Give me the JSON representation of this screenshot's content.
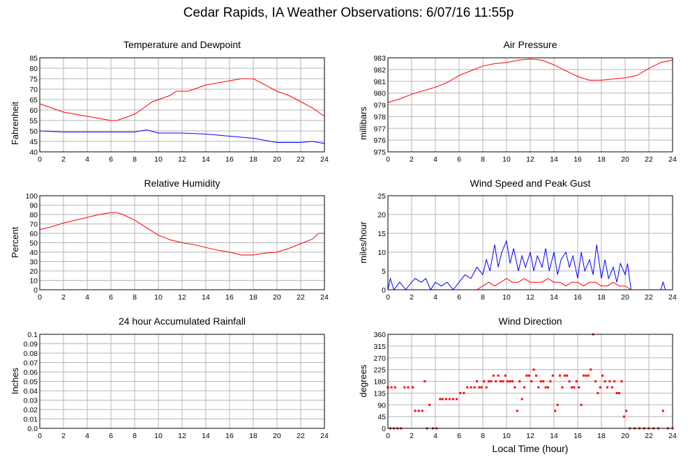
{
  "page": {
    "title": "Cedar Rapids, IA Weather Observations: 6/07/16 11:55p"
  },
  "colors": {
    "red": "#ff0000",
    "blue": "#0000ff",
    "grid": "#b5b5b5"
  },
  "chart_data": [
    {
      "id": "temp",
      "type": "line",
      "title": "Temperature and Dewpoint",
      "ylabel": "Fahrenheit",
      "xlabel": "",
      "xlim": [
        0,
        24
      ],
      "ylim": [
        40,
        85
      ],
      "xticks": [
        0,
        2,
        4,
        6,
        8,
        10,
        12,
        14,
        16,
        18,
        20,
        22,
        24
      ],
      "yticks": [
        40,
        45,
        50,
        55,
        60,
        65,
        70,
        75,
        80,
        85
      ],
      "grid": true,
      "series": [
        {
          "color": "#ff0000",
          "x": [
            0,
            1,
            2,
            3,
            4,
            5,
            6,
            6.5,
            7,
            8,
            8.5,
            9,
            9.5,
            10,
            11,
            11.5,
            12,
            12.5,
            13,
            14,
            15,
            16,
            17,
            18,
            19,
            20,
            21,
            22,
            23,
            24
          ],
          "y": [
            63,
            61,
            59,
            58,
            57,
            56,
            55,
            55,
            56,
            58,
            60,
            62,
            64,
            65,
            67,
            69,
            69,
            69,
            70,
            72,
            73,
            74,
            75,
            75,
            72,
            69,
            67,
            64,
            61,
            57
          ]
        },
        {
          "color": "#0000ff",
          "x": [
            0,
            2,
            4,
            6,
            8,
            9,
            10,
            12,
            14,
            16,
            18,
            19,
            20,
            22,
            23,
            24
          ],
          "y": [
            50,
            49.5,
            49.5,
            49.5,
            49.5,
            50.5,
            49,
            49,
            48.5,
            47.5,
            46.5,
            45.5,
            44.5,
            44.5,
            45,
            44
          ]
        }
      ]
    },
    {
      "id": "pressure",
      "type": "line",
      "title": "Air Pressure",
      "ylabel": "millibars",
      "xlabel": "",
      "xlim": [
        0,
        24
      ],
      "ylim": [
        975,
        983
      ],
      "xticks": [
        0,
        2,
        4,
        6,
        8,
        10,
        12,
        14,
        16,
        18,
        20,
        22,
        24
      ],
      "yticks": [
        975,
        976,
        977,
        978,
        979,
        980,
        981,
        982,
        983
      ],
      "grid": true,
      "series": [
        {
          "color": "#ff0000",
          "x": [
            0,
            1,
            2,
            3,
            4,
            5,
            6,
            7,
            8,
            9,
            10,
            11,
            12,
            13,
            14,
            15,
            16,
            17,
            18,
            19,
            20,
            21,
            22,
            23,
            24
          ],
          "y": [
            979.2,
            979.5,
            979.9,
            980.2,
            980.5,
            980.9,
            981.5,
            981.9,
            982.3,
            982.5,
            982.6,
            982.8,
            982.9,
            982.8,
            982.4,
            981.9,
            981.4,
            981.1,
            981.1,
            981.2,
            981.3,
            981.5,
            982.1,
            982.6,
            982.8
          ]
        }
      ]
    },
    {
      "id": "humidity",
      "type": "line",
      "title": "Relative Humidity",
      "ylabel": "Percent",
      "xlabel": "",
      "xlim": [
        0,
        24
      ],
      "ylim": [
        0,
        100
      ],
      "xticks": [
        0,
        2,
        4,
        6,
        8,
        10,
        12,
        14,
        16,
        18,
        20,
        22,
        24
      ],
      "yticks": [
        0,
        10,
        20,
        30,
        40,
        50,
        60,
        70,
        80,
        90,
        100
      ],
      "grid": true,
      "series": [
        {
          "color": "#ff0000",
          "x": [
            0,
            1,
            2,
            3,
            4,
            5,
            6,
            6.5,
            7,
            8,
            9,
            10,
            11,
            12,
            13,
            14,
            15,
            16,
            17,
            18,
            19,
            20,
            21,
            22,
            23,
            23.5,
            24
          ],
          "y": [
            64,
            67,
            71,
            74,
            77,
            80,
            82,
            82,
            80,
            74,
            66,
            58,
            53,
            50,
            48,
            45,
            42,
            40,
            37,
            37,
            39,
            40,
            44,
            49,
            54,
            60,
            60
          ]
        }
      ]
    },
    {
      "id": "wind",
      "type": "line",
      "title": "Wind Speed and Peak Gust",
      "ylabel": "miles/hour",
      "xlabel": "",
      "xlim": [
        0,
        24
      ],
      "ylim": [
        0,
        25
      ],
      "xticks": [
        0,
        2,
        4,
        6,
        8,
        10,
        12,
        14,
        16,
        18,
        20,
        22,
        24
      ],
      "yticks": [
        0,
        5,
        10,
        15,
        20,
        25
      ],
      "grid": true,
      "series": [
        {
          "color": "#0000ff",
          "x": [
            0,
            0.2,
            0.5,
            1,
            1.5,
            2,
            2.3,
            2.8,
            3.2,
            3.6,
            4,
            4.5,
            5,
            5.5,
            6,
            6.5,
            7,
            7.5,
            8,
            8.3,
            8.6,
            9,
            9.3,
            9.6,
            10,
            10.3,
            10.6,
            11,
            11.3,
            11.6,
            12,
            12.3,
            12.6,
            13,
            13.3,
            13.6,
            14,
            14.3,
            14.6,
            15,
            15.3,
            15.6,
            16,
            16.3,
            16.6,
            17,
            17.3,
            17.6,
            18,
            18.3,
            18.6,
            19,
            19.3,
            19.6,
            20,
            20.2,
            20.5,
            21,
            23,
            23.2,
            23.4,
            24
          ],
          "y": [
            0,
            3,
            0,
            2,
            0,
            2,
            3,
            2,
            3,
            0,
            2,
            1,
            2,
            0,
            2,
            4,
            3,
            6,
            4,
            8,
            5,
            12,
            6,
            10,
            13,
            7,
            11,
            5,
            9,
            6,
            10,
            5,
            9,
            6,
            11,
            5,
            10,
            4,
            8,
            10,
            6,
            9,
            3,
            10,
            5,
            8,
            4,
            12,
            3,
            8,
            3,
            6,
            2,
            7,
            4,
            7,
            0,
            0,
            0,
            2,
            0,
            0
          ]
        },
        {
          "color": "#ff0000",
          "x": [
            0,
            7.5,
            8,
            8.5,
            9,
            9.5,
            10,
            10.5,
            11,
            11.5,
            12,
            12.5,
            13,
            13.5,
            14,
            14.5,
            15,
            15.5,
            16,
            16.5,
            17,
            17.5,
            18,
            18.5,
            19,
            19.5,
            20,
            20.5,
            24
          ],
          "y": [
            0,
            0,
            1,
            2,
            1,
            2,
            3,
            2,
            2,
            3,
            2,
            2,
            2,
            3,
            2,
            2,
            1,
            2,
            2,
            1,
            2,
            2,
            1,
            1,
            2,
            1,
            1,
            0,
            0
          ]
        }
      ]
    },
    {
      "id": "rain",
      "type": "line",
      "title": "24 hour Accumulated Rainfall",
      "ylabel": "Inches",
      "xlabel": "",
      "xlim": [
        0,
        24
      ],
      "ylim": [
        0,
        0.1
      ],
      "xticks": [
        0,
        2,
        4,
        6,
        8,
        10,
        12,
        14,
        16,
        18,
        20,
        22,
        24
      ],
      "yticks": [
        0.0,
        0.01,
        0.02,
        0.03,
        0.04,
        0.05,
        0.06,
        0.07,
        0.08,
        0.09,
        0.1
      ],
      "ytick_labels": [
        "0.0",
        "0.01",
        "0.02",
        "0.03",
        "0.04",
        "0.05",
        "0.06",
        "0.07",
        "0.08",
        "0.09",
        "0.1"
      ],
      "grid": true,
      "series": [
        {
          "color": "#ff0000",
          "x": [
            0,
            24
          ],
          "y": [
            0,
            0
          ]
        }
      ]
    },
    {
      "id": "direction",
      "type": "scatter",
      "title": "Wind Direction",
      "ylabel": "degrees",
      "xlabel": "Local Time (hour)",
      "xlim": [
        0,
        24
      ],
      "ylim": [
        0,
        360
      ],
      "xticks": [
        0,
        2,
        4,
        6,
        8,
        10,
        12,
        14,
        16,
        18,
        20,
        22,
        24
      ],
      "yticks": [
        0,
        45,
        90,
        135,
        180,
        225,
        270,
        315,
        360
      ],
      "grid": true,
      "series": [
        {
          "color": "#ff0000",
          "x": [
            0,
            0.3,
            0.6,
            0.2,
            0.5,
            0.8,
            1.1,
            1.4,
            1.7,
            2.1,
            2.3,
            2.6,
            2.9,
            3.1,
            3.3,
            3.5,
            3.8,
            4.1,
            4.4,
            4.6,
            4.9,
            5.2,
            5.5,
            5.8,
            6.1,
            6.4,
            6.7,
            7.0,
            7.3,
            7.5,
            7.7,
            7.9,
            8.1,
            8.3,
            8.5,
            8.7,
            8.9,
            9.1,
            9.3,
            9.5,
            9.7,
            9.9,
            10.1,
            10.3,
            10.5,
            10.7,
            10.9,
            11.1,
            11.3,
            11.5,
            11.7,
            11.9,
            12.1,
            12.3,
            12.5,
            12.7,
            12.9,
            13.1,
            13.3,
            13.5,
            13.7,
            13.9,
            14.1,
            14.3,
            14.5,
            14.7,
            14.9,
            15.1,
            15.3,
            15.5,
            15.7,
            15.9,
            16.1,
            16.3,
            16.5,
            16.7,
            16.9,
            17.1,
            17.3,
            17.5,
            17.7,
            17.9,
            18.1,
            18.3,
            18.5,
            18.7,
            18.9,
            19.1,
            19.3,
            19.5,
            19.7,
            19.9,
            20.1,
            20.4,
            20.8,
            21.2,
            21.6,
            22.0,
            22.4,
            22.8,
            23.2,
            23.6,
            24
          ],
          "y": [
            157,
            157,
            157,
            0,
            0,
            0,
            0,
            157,
            157,
            157,
            67,
            67,
            67,
            180,
            0,
            90,
            0,
            0,
            112,
            112,
            112,
            112,
            112,
            112,
            135,
            135,
            157,
            157,
            157,
            180,
            157,
            157,
            180,
            157,
            180,
            180,
            202,
            180,
            202,
            180,
            180,
            202,
            180,
            180,
            180,
            157,
            67,
            180,
            112,
            157,
            202,
            202,
            180,
            225,
            202,
            157,
            180,
            180,
            157,
            157,
            180,
            202,
            67,
            90,
            202,
            157,
            202,
            202,
            180,
            157,
            157,
            180,
            157,
            90,
            202,
            202,
            202,
            225,
            360,
            180,
            135,
            157,
            202,
            180,
            157,
            180,
            157,
            180,
            135,
            135,
            180,
            45,
            67,
            0,
            0,
            0,
            0,
            0,
            0,
            0,
            67,
            0,
            0
          ]
        }
      ]
    }
  ]
}
